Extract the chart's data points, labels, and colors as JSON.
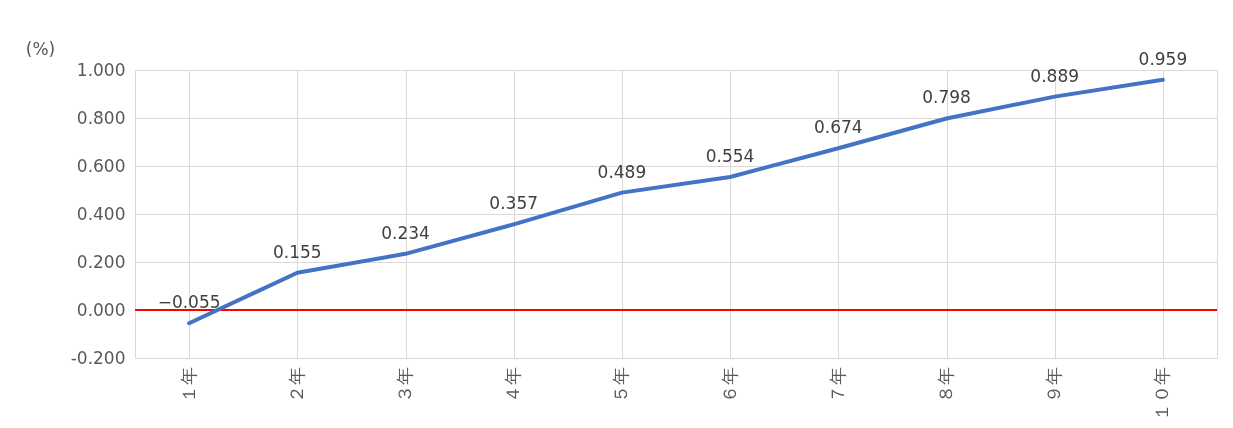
{
  "chart_data": {
    "type": "line",
    "ylabel": "(%)",
    "categories": [
      "１年",
      "２年",
      "３年",
      "４年",
      "５年",
      "６年",
      "７年",
      "８年",
      "９年",
      "１０年"
    ],
    "series": [
      {
        "color": "#4472c4",
        "values": [
          -0.055,
          0.155,
          0.234,
          0.357,
          0.489,
          0.554,
          0.674,
          0.798,
          0.889,
          0.959
        ]
      }
    ],
    "ylim": [
      -0.2,
      1.0
    ],
    "yticks": [
      {
        "value": -0.2,
        "label": "-0.200"
      },
      {
        "value": 0,
        "label": "0.000"
      },
      {
        "value": 0.2,
        "label": "0.200"
      },
      {
        "value": 0.4,
        "label": "0.400"
      },
      {
        "value": 0.6,
        "label": "0.600"
      },
      {
        "value": 0.8,
        "label": "0.800"
      },
      {
        "value": 1.0,
        "label": "1.000"
      }
    ],
    "ref_lines": [
      {
        "axis": "y",
        "value": 0,
        "color": "#ff0000"
      }
    ],
    "grid": true,
    "data_labels": true,
    "marker": "none",
    "line_style": "solid"
  }
}
